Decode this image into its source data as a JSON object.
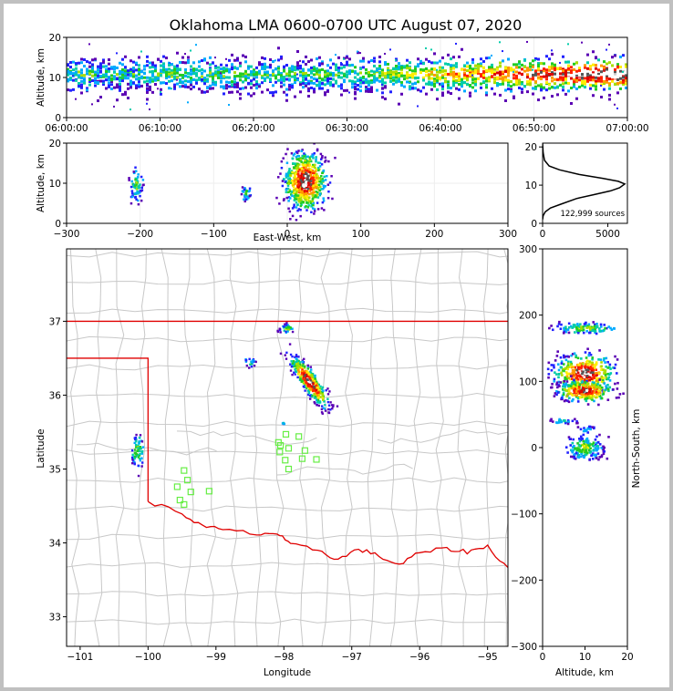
{
  "title": "Oklahoma LMA 0600-0700 UTC August 07, 2020",
  "colors": {
    "state_border": "#e00000",
    "county_lines": "#c8c8c8",
    "stations": "#66ee44",
    "colormap": [
      "#5a00b4",
      "#2222ff",
      "#00aaff",
      "#00ccaa",
      "#22cc22",
      "#aadd00",
      "#ffee00",
      "#ff9900",
      "#ff2200",
      "#dd0000",
      "#555555",
      "#ffffff"
    ]
  },
  "time_panel": {
    "ylabel": "Altitude, km",
    "y_ticks": [
      "0",
      "10",
      "20"
    ],
    "x_ticks": [
      "06:00:00",
      "06:10:00",
      "06:20:00",
      "06:30:00",
      "06:40:00",
      "06:50:00",
      "07:00:00"
    ]
  },
  "ew_panel": {
    "ylabel": "Altitude, km",
    "xlabel": "East-West, km",
    "y_ticks": [
      "0",
      "10",
      "20"
    ],
    "x_ticks": [
      "−300",
      "−200",
      "−100",
      "0",
      "100",
      "200",
      "300"
    ]
  },
  "hist_panel": {
    "y_ticks": [
      "0",
      "10",
      "20"
    ],
    "x_ticks": [
      "0",
      "5000"
    ],
    "sources_label": "122,999 sources"
  },
  "map_panel": {
    "xlabel": "Longitude",
    "ylabel": "Latitude",
    "x_ticks": [
      "−101",
      "−100",
      "−99",
      "−98",
      "−97",
      "−96",
      "−95"
    ],
    "y_ticks": [
      "33",
      "34",
      "35",
      "36",
      "37"
    ]
  },
  "ns_panel": {
    "xlabel": "Altitude, km",
    "ylabel": "North-South, km",
    "x_ticks": [
      "0",
      "10",
      "20"
    ],
    "y_ticks": [
      "−300",
      "−200",
      "−100",
      "0",
      "100",
      "200",
      "300"
    ]
  },
  "chart_data": [
    {
      "type": "heatmap",
      "panel": "altitude-vs-time",
      "xlim": [
        "06:00:00",
        "07:00:00"
      ],
      "ylim": [
        0,
        20
      ],
      "ylabel": "Altitude, km",
      "description_values": {
        "core_altitude_km": 11,
        "activity_increasing_after": "06:33"
      }
    },
    {
      "type": "heatmap",
      "panel": "altitude-vs-east-west",
      "xlim": [
        -300,
        300
      ],
      "ylim": [
        0,
        20
      ],
      "xlabel": "East-West, km",
      "ylabel": "Altitude, km",
      "clusters": [
        {
          "x_km": -205,
          "alt_km": [
            4,
            15
          ]
        },
        {
          "x_km": -55,
          "alt_km": [
            5,
            10
          ]
        },
        {
          "x_km": 25,
          "alt_km": [
            1,
            20
          ],
          "peak_alt_km": 11
        }
      ]
    },
    {
      "type": "line",
      "panel": "altitude-histogram",
      "xlim": [
        0,
        6500
      ],
      "ylim": [
        0,
        21
      ],
      "x": [
        0,
        40,
        200,
        600,
        1400,
        2600,
        3900,
        5200,
        5900,
        6300,
        5800,
        4600,
        2800,
        1300,
        500,
        150,
        40,
        0
      ],
      "y": [
        1,
        2,
        3,
        4,
        5,
        6.5,
        7.5,
        8.5,
        9.3,
        10.3,
        11,
        11.8,
        12.8,
        14,
        15,
        16.5,
        18.5,
        21
      ],
      "annotation": "122,999 sources"
    },
    {
      "type": "scatter",
      "panel": "plan-view-map",
      "xlim": [
        -101.2,
        -94.7
      ],
      "ylim": [
        32.6,
        37.98
      ],
      "xlabel": "Longitude",
      "ylabel": "Latitude",
      "source_clusters": [
        {
          "lon": -100.15,
          "lat": 35.25
        },
        {
          "lon": -98.5,
          "lat": 36.45
        },
        {
          "lon": -97.95,
          "lat": 36.9
        },
        {
          "lon": -97.6,
          "lat": 36.2
        }
      ],
      "stations": [
        {
          "lon": -98.05,
          "lat": 35.32
        },
        {
          "lon": -97.97,
          "lat": 35.47
        },
        {
          "lon": -97.78,
          "lat": 35.44
        },
        {
          "lon": -98.06,
          "lat": 35.23
        },
        {
          "lon": -97.93,
          "lat": 35.28
        },
        {
          "lon": -97.69,
          "lat": 35.25
        },
        {
          "lon": -98.08,
          "lat": 35.36
        },
        {
          "lon": -97.98,
          "lat": 35.12
        },
        {
          "lon": -97.73,
          "lat": 35.14
        },
        {
          "lon": -97.52,
          "lat": 35.13
        },
        {
          "lon": -97.93,
          "lat": 35.0
        },
        {
          "lon": -99.47,
          "lat": 34.98
        },
        {
          "lon": -99.42,
          "lat": 34.85
        },
        {
          "lon": -99.57,
          "lat": 34.76
        },
        {
          "lon": -99.37,
          "lat": 34.69
        },
        {
          "lon": -99.1,
          "lat": 34.7
        },
        {
          "lon": -99.53,
          "lat": 34.58
        },
        {
          "lon": -99.47,
          "lat": 34.52
        }
      ]
    },
    {
      "type": "heatmap",
      "panel": "north-south-vs-altitude",
      "xlim": [
        0,
        20
      ],
      "ylim": [
        -300,
        300
      ],
      "xlabel": "Altitude, km",
      "ylabel": "North-South, km",
      "clusters": [
        {
          "ns_km": 180,
          "alt_km": [
            3,
            19
          ]
        },
        {
          "ns_km": 110,
          "alt_km": [
            2,
            20
          ],
          "peak_alt_km": 11
        },
        {
          "ns_km": 85,
          "alt_km": [
            2,
            20
          ],
          "peak_alt_km": 11
        },
        {
          "ns_km": 40,
          "alt_km": [
            3,
            7
          ]
        },
        {
          "ns_km": 0,
          "alt_km": [
            4,
            15
          ]
        }
      ]
    }
  ]
}
